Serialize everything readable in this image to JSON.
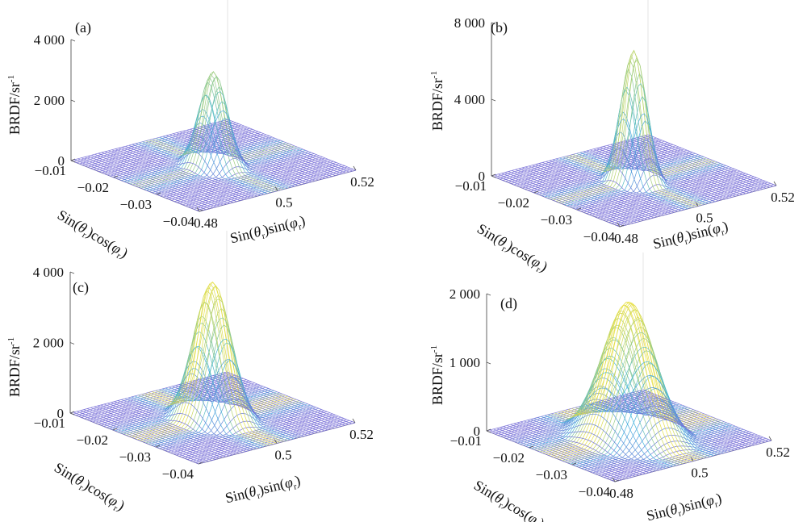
{
  "figure": {
    "ylabel": "BRDF/sr",
    "ylabel_sup": "-1",
    "xlabel_prefix": "Sin(",
    "xlabel_theta": "θ",
    "xlabel_sub": "r",
    "xlabel_mid": ")cos(",
    "xlabel_phi": "φ",
    "xlabel_end": ")",
    "ylabel2_prefix": "Sin(",
    "ylabel2_theta": "θ",
    "ylabel2_sub": "r",
    "ylabel2_mid": ")sin(",
    "ylabel2_phi": "φ",
    "ylabel2_end": ")"
  },
  "colors": {
    "mesh_low": "#7b72d8",
    "mesh_mid": "#3fb6dc",
    "mesh_high": "#f2e23a",
    "axis": "#555555"
  },
  "chart_data": [
    {
      "type": "surface",
      "panel_label": "(a)",
      "x_ticks": [
        "−0.01",
        "−0.02",
        "−0.03",
        "−0.04"
      ],
      "y_ticks": [
        "0.48",
        "0.5",
        "0.52"
      ],
      "z_ticks": [
        "0",
        "2 000",
        "4 000"
      ],
      "x_range": [
        -0.04,
        -0.01
      ],
      "y_range": [
        0.48,
        0.52
      ],
      "z_range": [
        0,
        4000
      ],
      "peak": 3100,
      "peak_x": -0.025,
      "peak_y": 0.5,
      "width_x": 0.0024,
      "width_y": 0.0024
    },
    {
      "type": "surface",
      "panel_label": "(b)",
      "x_ticks": [
        "−0.01",
        "−0.02",
        "−0.03",
        "−0.04"
      ],
      "y_ticks": [
        "0.48",
        "0.5",
        "0.52"
      ],
      "z_ticks": [
        "0",
        "4 000",
        "8 000"
      ],
      "x_range": [
        -0.04,
        -0.01
      ],
      "y_range": [
        0.48,
        0.52
      ],
      "z_range": [
        0,
        8000
      ],
      "peak": 6800,
      "peak_x": -0.025,
      "peak_y": 0.5,
      "width_x": 0.0022,
      "width_y": 0.0022
    },
    {
      "type": "surface",
      "panel_label": "(c)",
      "x_ticks": [
        "−0.01",
        "−0.02",
        "−0.03",
        "−0.04"
      ],
      "y_ticks": [
        "0.5",
        "0.52"
      ],
      "z_ticks": [
        "0",
        "2 000",
        "4 000"
      ],
      "x_range": [
        -0.04,
        -0.01
      ],
      "y_range": [
        0.48,
        0.52
      ],
      "z_range": [
        0,
        4000
      ],
      "peak": 3850,
      "peak_x": -0.025,
      "peak_y": 0.5,
      "width_x": 0.0032,
      "width_y": 0.0032
    },
    {
      "type": "surface",
      "panel_label": "(d)",
      "x_ticks": [
        "−0.01",
        "−0.02",
        "−0.03",
        "−0.04"
      ],
      "y_ticks": [
        "0.48",
        "0.5",
        "0.52"
      ],
      "z_ticks": [
        "0",
        "1 000",
        "2 000"
      ],
      "x_range": [
        -0.04,
        -0.01
      ],
      "y_range": [
        0.48,
        0.52
      ],
      "z_range": [
        0,
        2000
      ],
      "peak": 1950,
      "peak_x": -0.025,
      "peak_y": 0.5,
      "width_x": 0.0045,
      "width_y": 0.0045
    }
  ]
}
